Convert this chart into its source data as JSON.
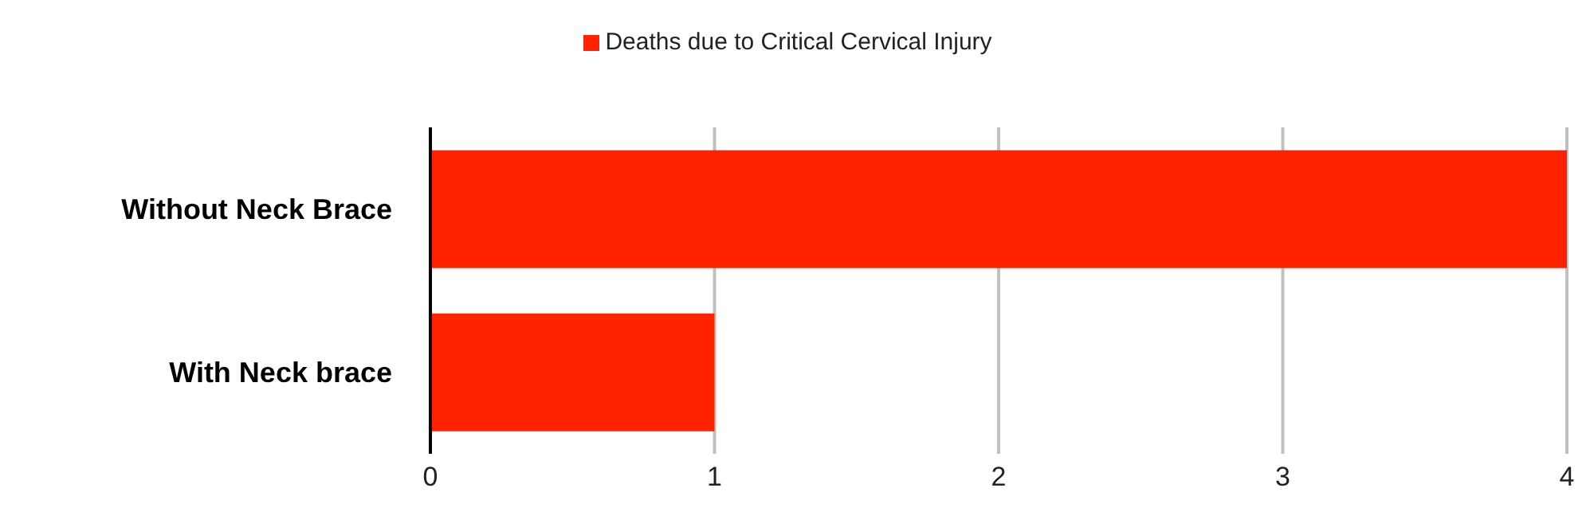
{
  "chart_data": {
    "type": "bar",
    "orientation": "horizontal",
    "categories": [
      "Without Neck Brace",
      "With Neck brace"
    ],
    "series": [
      {
        "name": "Deaths due to Critical Cervical Injury",
        "color": "#ff2200",
        "values": [
          4,
          1
        ]
      }
    ],
    "xlim": [
      0,
      4
    ],
    "xticks": [
      0,
      1,
      2,
      3,
      4
    ],
    "grid": "x",
    "legend": "top"
  }
}
